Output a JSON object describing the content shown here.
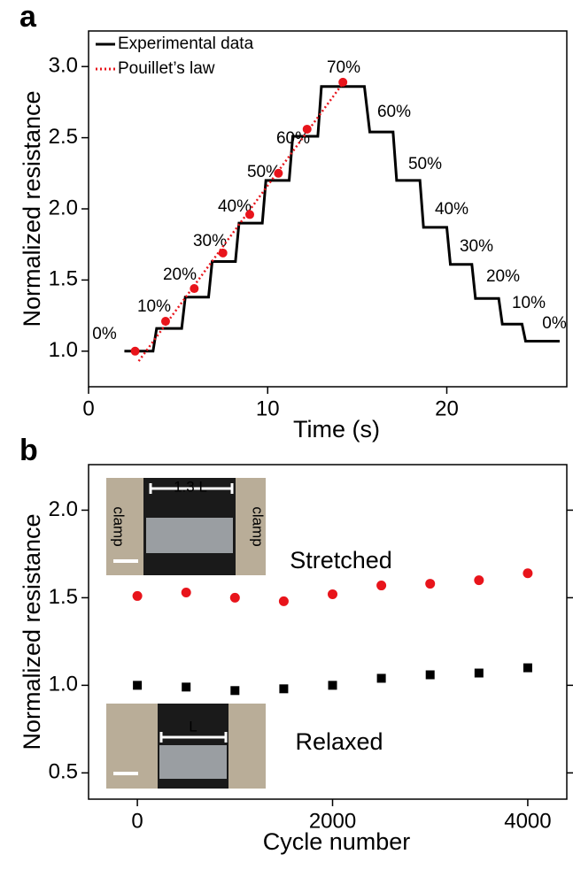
{
  "chart_data": [
    {
      "type": "line",
      "panel": "a",
      "xlabel": "Time (s)",
      "ylabel": "Normalized resistance",
      "xlim": [
        0,
        26.7
      ],
      "ylim": [
        0.75,
        3.25
      ],
      "xticks": [
        0,
        10,
        20
      ],
      "yticks": [
        {
          "value": 1,
          "label": "1.0"
        },
        1.5,
        {
          "value": 2,
          "label": "2.0"
        },
        2.5,
        {
          "value": 3,
          "label": "3.0"
        }
      ],
      "series": [
        {
          "name": "Experimental data",
          "color": "#000000",
          "style": "solid",
          "x": [
            2.0,
            3.6,
            3.8,
            5.2,
            5.4,
            6.7,
            6.9,
            8.2,
            8.4,
            9.7,
            9.9,
            11.2,
            11.4,
            12.8,
            13.0,
            15.4,
            15.7,
            17.0,
            17.2,
            18.5,
            18.7,
            20.0,
            20.2,
            21.4,
            21.6,
            22.9,
            23.1,
            24.2,
            24.4,
            26.3
          ],
          "values": [
            1.0,
            1.0,
            1.16,
            1.16,
            1.38,
            1.38,
            1.63,
            1.63,
            1.9,
            1.9,
            2.2,
            2.2,
            2.51,
            2.51,
            2.86,
            2.86,
            2.54,
            2.54,
            2.2,
            2.2,
            1.87,
            1.87,
            1.61,
            1.61,
            1.37,
            1.37,
            1.19,
            1.19,
            1.07,
            1.07
          ]
        },
        {
          "name": "Pouillet’s law",
          "color": "#e8141b",
          "style": "dotted",
          "x": [
            2.6,
            4.3,
            5.9,
            7.5,
            9.0,
            10.6,
            12.2,
            14.2
          ],
          "values": [
            1.0,
            1.21,
            1.44,
            1.69,
            1.96,
            2.25,
            2.56,
            2.89
          ],
          "line_x": [
            2.8,
            14.3
          ],
          "line_values": [
            0.93,
            2.9
          ]
        }
      ],
      "annotations": [
        "0%",
        "10%",
        "20%",
        "30%",
        "40%",
        "50%",
        "60%",
        "70%",
        "60%",
        "50%",
        "40%",
        "30%",
        "20%",
        "10%",
        "0%"
      ]
    },
    {
      "type": "scatter",
      "panel": "b",
      "xlabel": "Cycle number",
      "ylabel": "Normalized resistance",
      "xlim": [
        -500,
        4400
      ],
      "ylim": [
        0.35,
        2.26
      ],
      "xticks": [
        0,
        2000,
        4000
      ],
      "yticks": [
        0.5,
        {
          "value": 1,
          "label": "1.0"
        },
        1.5,
        {
          "value": 2,
          "label": "2.0"
        }
      ],
      "right_ticks": true,
      "x": [
        0,
        500,
        1000,
        1500,
        2000,
        2500,
        3000,
        3500,
        4000
      ],
      "series": [
        {
          "name": "Stretched",
          "color": "#e8141b",
          "marker": "circle",
          "values": [
            1.51,
            1.53,
            1.5,
            1.48,
            1.52,
            1.57,
            1.58,
            1.6,
            1.64
          ]
        },
        {
          "name": "Relaxed",
          "color": "#000000",
          "marker": "square",
          "values": [
            1.0,
            0.99,
            0.97,
            0.98,
            1.0,
            1.04,
            1.06,
            1.07,
            1.1
          ]
        }
      ],
      "annotations": [
        "clamp",
        "1.3 L",
        "clamp",
        "L"
      ]
    }
  ]
}
